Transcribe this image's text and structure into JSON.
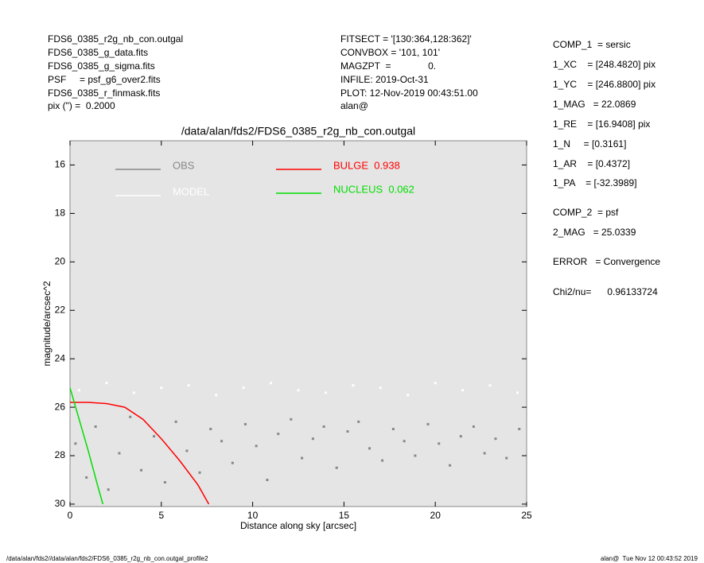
{
  "header": {
    "left": [
      "FDS6_0385_r2g_nb_con.outgal",
      "FDS6_0385_g_data.fits",
      "FDS6_0385_g_sigma.fits",
      "PSF     = psf_g6_over2.fits",
      "FDS6_0385_r_finmask.fits",
      "pix (\") =  0.2000"
    ],
    "middle": [
      "FITSECT = '[130:364,128:362]'",
      "CONVBOX = '101, 101'",
      "MAGZPT  =              0.",
      "INFILE: 2019-Oct-31",
      "PLOT: 12-Nov-2019 00:43:51.00",
      "alan@"
    ],
    "right": [
      "COMP_1  = sersic",
      "1_XC    = [248.4820] pix",
      "1_YC    = [246.8800] pix",
      "1_MAG   = 22.0869",
      "1_RE    = [16.9408] pix",
      "1_N     = [0.3161]",
      "1_AR    = [0.4372]",
      "1_PA    = [-32.3989]",
      "COMP_2  = psf",
      "2_MAG   = 25.0339",
      "ERROR   = Convergence",
      "Chi2/nu=      0.96133724"
    ]
  },
  "footer": {
    "left": "/data/alan/fds2//data/alan/fds2/FDS6_0385_r2g_nb_con.outgal_profile2",
    "right": "alan@  Tue Nov 12 00:43:52 2019"
  },
  "chart_data": {
    "type": "scatter",
    "title": "/data/alan/fds2/FDS6_0385_r2g_nb_con.outgal",
    "x_label": "Distance along sky [arcsec]",
    "y_label": "magnitude/arcsec^2",
    "xlim": [
      0,
      25
    ],
    "xticks": [
      0,
      5,
      10,
      15,
      20,
      25
    ],
    "ylim": [
      30.1,
      15.0
    ],
    "yticks": [
      16,
      18,
      20,
      22,
      24,
      26,
      28,
      30
    ],
    "background": "#e5e5e5",
    "series": [
      {
        "name": "OBS",
        "color": "#888888",
        "mode": "points",
        "x": [
          0.3,
          0.9,
          1.4,
          2.1,
          2.7,
          3.3,
          3.9,
          4.6,
          5.2,
          5.8,
          6.4,
          7.1,
          7.7,
          8.3,
          8.9,
          9.6,
          10.2,
          10.8,
          11.4,
          12.1,
          12.7,
          13.3,
          13.9,
          14.6,
          15.2,
          15.8,
          16.4,
          17.1,
          17.7,
          18.3,
          18.9,
          19.6,
          20.2,
          20.8,
          21.4,
          22.1,
          22.7,
          23.3,
          23.9,
          24.6
        ],
        "values": [
          27.5,
          28.9,
          26.8,
          29.4,
          27.9,
          26.4,
          28.6,
          27.2,
          29.1,
          26.6,
          27.8,
          28.7,
          26.9,
          27.4,
          28.3,
          26.7,
          27.6,
          29.0,
          27.1,
          26.5,
          28.1,
          27.3,
          26.8,
          28.5,
          27.0,
          26.6,
          27.7,
          28.2,
          26.9,
          27.4,
          28.0,
          26.7,
          27.5,
          28.4,
          27.2,
          26.8,
          27.9,
          27.3,
          28.1,
          26.9
        ]
      },
      {
        "name": "MODEL",
        "color": "#ffffff",
        "mode": "points",
        "x": [
          0.5,
          2,
          3.5,
          5,
          6.5,
          8,
          9.5,
          11,
          12.5,
          14,
          15.5,
          17,
          18.5,
          20,
          21.5,
          23,
          24.5
        ],
        "values": [
          25.3,
          25.0,
          25.4,
          25.2,
          25.1,
          25.5,
          25.2,
          25.0,
          25.3,
          25.4,
          25.1,
          25.2,
          25.5,
          25.0,
          25.3,
          25.1,
          25.4
        ]
      },
      {
        "name": "BULGE  0.938",
        "color": "#ff0000",
        "mode": "line",
        "x": [
          0,
          1,
          2,
          3,
          4,
          5,
          6,
          7,
          7.6
        ],
        "values": [
          25.8,
          25.8,
          25.85,
          26.0,
          26.5,
          27.3,
          28.2,
          29.2,
          30.0
        ]
      },
      {
        "name": "NUCLEUS  0.062",
        "color": "#00dd00",
        "mode": "line",
        "x": [
          0,
          0.5,
          1,
          1.5,
          1.8
        ],
        "values": [
          25.2,
          26.5,
          27.8,
          29.2,
          30.0
        ]
      }
    ]
  }
}
